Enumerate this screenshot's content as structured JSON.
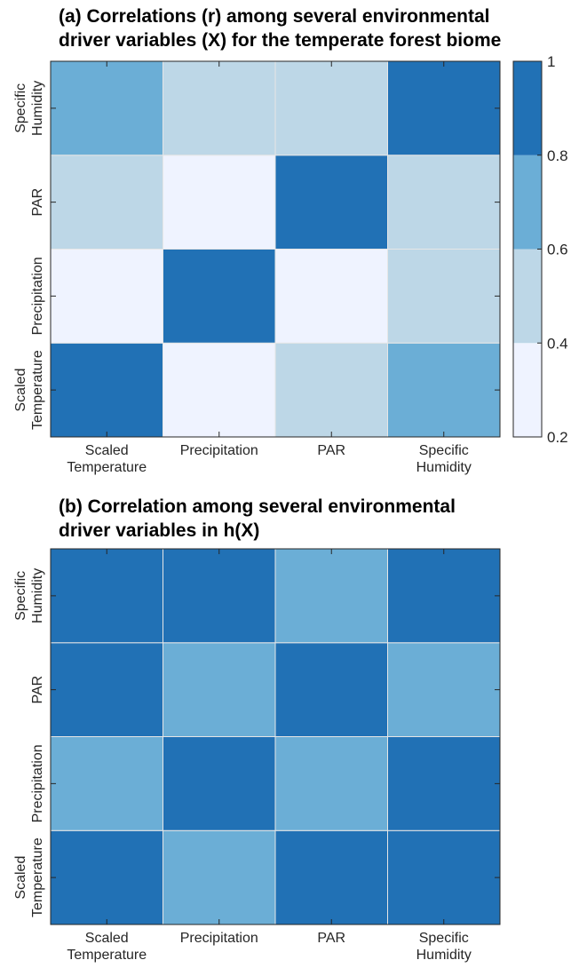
{
  "palette": [
    "#EFF3FF",
    "#BDD7E7",
    "#6BAED6",
    "#2171B5"
  ],
  "chart_data": [
    {
      "type": "heatmap",
      "title_lines": [
        "(a) Correlations (r) among several environmental",
        "driver variables (X) for the temperate forest biome"
      ],
      "x_categories": [
        [
          "Scaled",
          "Temperature"
        ],
        [
          "Precipitation"
        ],
        [
          "PAR"
        ],
        [
          "Specific",
          "Humidity"
        ]
      ],
      "y_categories": [
        [
          "Scaled",
          "Temperature"
        ],
        [
          "Precipitation"
        ],
        [
          "PAR"
        ],
        [
          "Specific",
          "Humidity"
        ]
      ],
      "y_order": "bottom-to-top",
      "matrix": [
        [
          1.0,
          0.3,
          0.5,
          0.7
        ],
        [
          0.3,
          1.0,
          0.3,
          0.5
        ],
        [
          0.5,
          0.3,
          1.0,
          0.5
        ],
        [
          0.7,
          0.5,
          0.5,
          1.0
        ]
      ],
      "colorbar": {
        "range": [
          0.2,
          1
        ],
        "ticks": [
          "0.2",
          "0.4",
          "0.6",
          "0.8",
          "1"
        ],
        "levels": 4
      }
    },
    {
      "type": "heatmap",
      "title_lines": [
        "(b) Correlation among several environmental",
        "driver variables in h(X)"
      ],
      "x_categories": [
        [
          "Scaled",
          "Temperature"
        ],
        [
          "Precipitation"
        ],
        [
          "PAR"
        ],
        [
          "Specific",
          "Humidity"
        ]
      ],
      "y_categories": [
        [
          "Scaled",
          "Temperature"
        ],
        [
          "Precipitation"
        ],
        [
          "PAR"
        ],
        [
          "Specific",
          "Humidity"
        ]
      ],
      "y_order": "bottom-to-top",
      "matrix": [
        [
          1.0,
          0.7,
          1.0,
          1.0
        ],
        [
          0.7,
          1.0,
          0.7,
          1.0
        ],
        [
          1.0,
          0.7,
          1.0,
          0.7
        ],
        [
          1.0,
          1.0,
          0.7,
          1.0
        ]
      ]
    }
  ]
}
